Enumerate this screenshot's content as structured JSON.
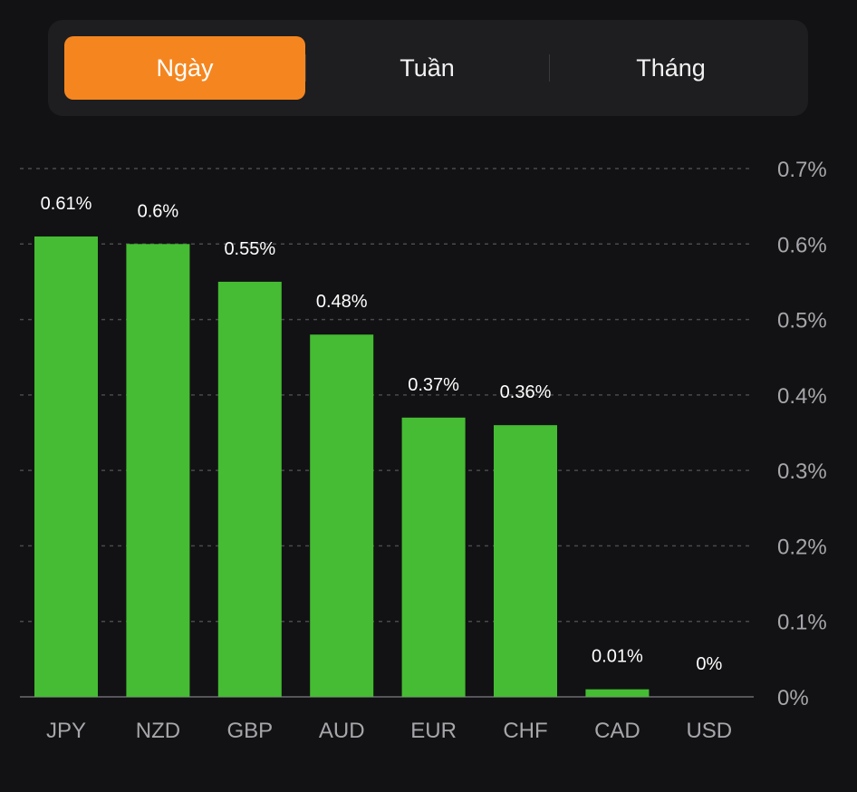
{
  "tabs": [
    {
      "label": "Ngày",
      "active": true
    },
    {
      "label": "Tuần",
      "active": false
    },
    {
      "label": "Tháng",
      "active": false
    }
  ],
  "colors": {
    "accent": "#f5861f",
    "bar": "#45bc33",
    "background": "#121214"
  },
  "chart_data": {
    "type": "bar",
    "categories": [
      "JPY",
      "NZD",
      "GBP",
      "AUD",
      "EUR",
      "CHF",
      "CAD",
      "USD"
    ],
    "values": [
      0.61,
      0.6,
      0.55,
      0.48,
      0.37,
      0.36,
      0.01,
      0
    ],
    "data_labels": [
      "0.61%",
      "0.6%",
      "0.55%",
      "0.48%",
      "0.37%",
      "0.36%",
      "0.01%",
      "0%"
    ],
    "y_ticks": [
      0,
      0.1,
      0.2,
      0.3,
      0.4,
      0.5,
      0.6,
      0.7
    ],
    "y_tick_labels": [
      "0%",
      "0.1%",
      "0.2%",
      "0.3%",
      "0.4%",
      "0.5%",
      "0.6%",
      "0.7%"
    ],
    "ylim": [
      0,
      0.7
    ],
    "grid": true,
    "y_axis_position": "right",
    "title": "",
    "xlabel": "",
    "ylabel": ""
  }
}
